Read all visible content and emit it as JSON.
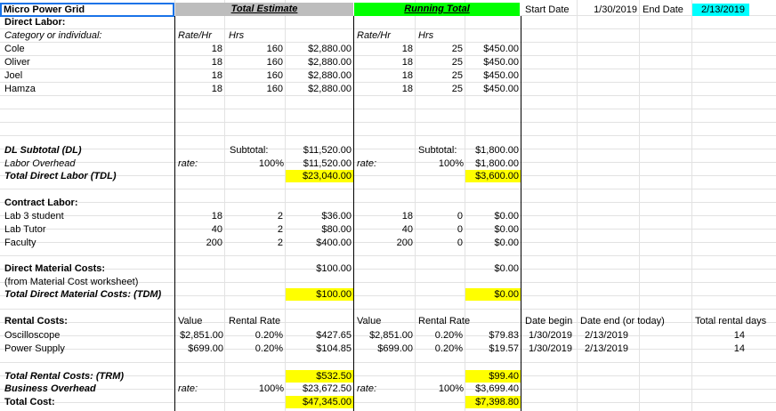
{
  "title": "Micro Power Grid",
  "header": {
    "total_estimate": "Total Estimate",
    "running_total": "Running Total",
    "start_date_label": "Start Date",
    "start_date": "1/30/2019",
    "end_date_label": "End Date",
    "end_date": "2/13/2019"
  },
  "colors": {
    "running_total_bg": "#00ff00",
    "end_date_bg": "#00ffff",
    "highlight": "#ffff00",
    "selection": "#1a73e8"
  },
  "direct_labor": {
    "heading": "Direct Labor:",
    "category_label": "Category or individual:",
    "rate_hdr": "Rate/Hr",
    "hrs_hdr": "Hrs",
    "rows": [
      {
        "name": "Cole",
        "rate": "18",
        "hrs": "160",
        "cost": "$2,880.00",
        "rt_rate": "18",
        "rt_hrs": "25",
        "rt_cost": "$450.00"
      },
      {
        "name": "Oliver",
        "rate": "18",
        "hrs": "160",
        "cost": "$2,880.00",
        "rt_rate": "18",
        "rt_hrs": "25",
        "rt_cost": "$450.00"
      },
      {
        "name": "Joel",
        "rate": "18",
        "hrs": "160",
        "cost": "$2,880.00",
        "rt_rate": "18",
        "rt_hrs": "25",
        "rt_cost": "$450.00"
      },
      {
        "name": "Hamza",
        "rate": "18",
        "hrs": "160",
        "cost": "$2,880.00",
        "rt_rate": "18",
        "rt_hrs": "25",
        "rt_cost": "$450.00"
      }
    ]
  },
  "dl_subtotal": {
    "label": "DL Subtotal (DL)",
    "subtotal_label": "Subtotal:",
    "value": "$11,520.00",
    "rt_subtotal_label": "Subtotal:",
    "rt_value": "$1,800.00"
  },
  "labor_overhead": {
    "label": "Labor Overhead",
    "rate_label": "rate:",
    "pct": "100%",
    "value": "$11,520.00",
    "rt_rate_label": "rate:",
    "rt_pct": "100%",
    "rt_value": "$1,800.00"
  },
  "tdl": {
    "label": "Total Direct Labor (TDL)",
    "value": "$23,040.00",
    "rt_value": "$3,600.00"
  },
  "contract_labor": {
    "heading": "Contract Labor:",
    "rows": [
      {
        "name": "Lab 3 student",
        "rate": "18",
        "hrs": "2",
        "cost": "$36.00",
        "rt_rate": "18",
        "rt_hrs": "0",
        "rt_cost": "$0.00"
      },
      {
        "name": "Lab Tutor",
        "rate": "40",
        "hrs": "2",
        "cost": "$80.00",
        "rt_rate": "40",
        "rt_hrs": "0",
        "rt_cost": "$0.00"
      },
      {
        "name": "Faculty",
        "rate": "200",
        "hrs": "2",
        "cost": "$400.00",
        "rt_rate": "200",
        "rt_hrs": "0",
        "rt_cost": "$0.00"
      }
    ]
  },
  "material": {
    "heading": "Direct Material Costs:",
    "value": "$100.00",
    "rt_value": "$0.00",
    "note": "(from Material Cost worksheet)",
    "total_label": "Total Direct Material Costs: (TDM)",
    "total_value": "$100.00",
    "rt_total_value": "$0.00"
  },
  "rental": {
    "heading": "Rental Costs:",
    "value_hdr": "Value",
    "rate_hdr": "Rental Rate",
    "date_begin_hdr": "Date begin",
    "date_end_hdr": "Date end (or today)",
    "days_hdr": "Total rental days",
    "rows": [
      {
        "name": "Oscilloscope",
        "value": "$2,851.00",
        "rate": "0.20%",
        "cost": "$427.65",
        "rt_value": "$2,851.00",
        "rt_rate": "0.20%",
        "rt_cost": "$79.83",
        "begin": "1/30/2019",
        "end": "2/13/2019",
        "days": "14"
      },
      {
        "name": "Power Supply",
        "value": "$699.00",
        "rate": "0.20%",
        "cost": "$104.85",
        "rt_value": "$699.00",
        "rt_rate": "0.20%",
        "rt_cost": "$19.57",
        "begin": "1/30/2019",
        "end": "2/13/2019",
        "days": "14"
      }
    ]
  },
  "trm": {
    "label": "Total Rental Costs: (TRM)",
    "value": "$532.50",
    "rt_value": "$99.40"
  },
  "business_overhead": {
    "label": "Business Overhead",
    "rate_label": "rate:",
    "pct": "100%",
    "value": "$23,672.50",
    "rt_rate_label": "rate:",
    "rt_pct": "100%",
    "rt_value": "$3,699.40"
  },
  "total": {
    "label": "Total Cost:",
    "value": "$47,345.00",
    "rt_value": "$7,398.80"
  }
}
